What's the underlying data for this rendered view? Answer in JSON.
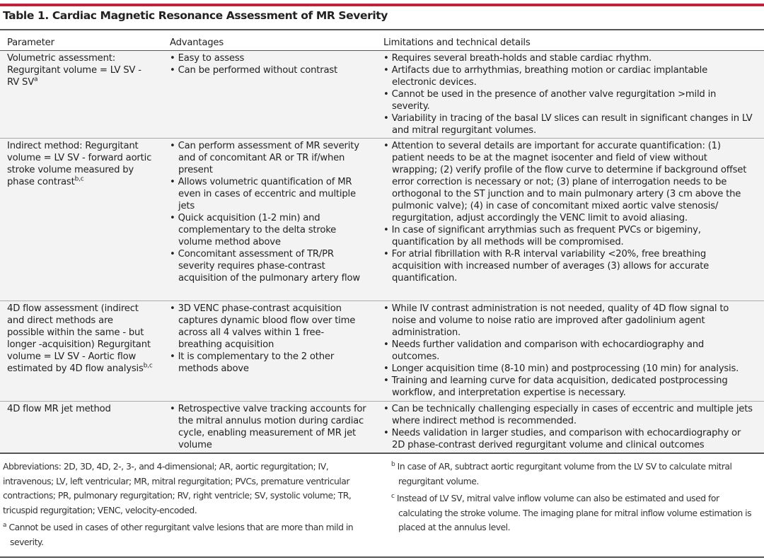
{
  "title": "Table 1. Cardiac Magnetic Resonance Assessment of MR Severity",
  "accent_color": "#b5263f",
  "headers": [
    "Parameter",
    "Advantages",
    "Limitations and technical details"
  ],
  "rows": [
    {
      "parameter": "Volumetric assessment: Regurgitant volume = LV SV - RV SV",
      "sup": "a",
      "advantages": [
        "Easy to assess",
        "Can be performed without contrast"
      ],
      "limitations": [
        "Requires several breath-holds and stable cardiac rhythm.",
        "Artifacts due to arrhythmias, breathing motion or cardiac implantable electronic devices.",
        "Cannot be used in the presence of another valve regurgitation >mild in severity.",
        "Variability in tracing of the basal LV slices can result in significant changes in LV and mitral regurgitant volumes."
      ]
    },
    {
      "parameter": "Indirect method: Regurgitant volume = LV SV - forward aortic stroke volume measured by phase contrast",
      "sup": "b,c",
      "advantages": [
        "Can perform assessment of MR severity and of concomitant AR or TR if/when present",
        "Allows volumetric quantification of MR even in cases of eccentric and multiple jets",
        "Quick acquisition (1-2 min) and complementary to the delta stroke volume method above",
        "Concomitant assessment of TR/PR severity requires phase-contrast acquisition of the pulmonary artery flow"
      ],
      "limitations": [
        "Attention to several details are important for accurate quantification: (1) patient needs to be at the magnet isocenter and field of view without wrapping; (2) verify profile of the flow curve to determine if background offset error correction is necessary or not; (3) plane of interrogation needs to be orthogonal to the ST junction and to main pulmonary artery (3 cm above the pulmonic valve); (4) in case of concomitant mixed aortic valve stenosis/ regurgitation, adjust accordingly the VENC limit to avoid aliasing.",
        "In case of significant arrythmias such as frequent PVCs or bigeminy, quantification by all methods will be compromised.",
        "For atrial fibrillation with R-R interval variability <20%, free breathing acquisition with increased number of averages (3) allows for accurate quantification."
      ]
    },
    {
      "parameter": "4D flow assessment (indirect and direct methods are possible within the same - but longer -acquisition) Regurgitant volume = LV SV - Aortic flow estimated by 4D flow analysis",
      "sup": "b,c",
      "advantages": [
        "3D VENC phase-contrast acquisition captures dynamic blood flow over time across all 4 valves within 1 free-breathing acquisition",
        "It is complementary to the 2 other methods above"
      ],
      "limitations": [
        "While IV contrast administration is not needed, quality of 4D flow signal to noise and volume to noise ratio are improved after gadolinium agent administration.",
        "Needs further validation and comparison with echocardiography and outcomes.",
        "Longer acquisition time (8-10 min) and postprocessing (10 min) for analysis.",
        "Training and learning curve for data acquisition, dedicated postprocessing workflow, and interpretation expertise is necessary."
      ]
    },
    {
      "parameter": "4D flow MR jet method",
      "sup": "",
      "advantages": [
        "Retrospective valve tracking accounts for the mitral annulus motion during cardiac cycle, enabling measurement of MR jet volume"
      ],
      "limitations": [
        "Can be technically challenging especially in cases of eccentric and multiple jets where indirect method is recommended.",
        "Needs validation in larger studies, and comparison with echocardiography or 2D phase-contrast derived regurgitant volume and clinical outcomes"
      ]
    }
  ],
  "footnotes": {
    "abbreviations": "Abbreviations: 2D, 3D, 4D, 2-, 3-, and 4-dimensional; AR, aortic regurgitation; IV, intravenous; LV, left ventricular; MR, mitral regurgitation; PVCs, premature ventricular contractions; PR, pulmonary regurgitation; RV, right ventricle; SV, systolic volume; TR, tricuspid regurgitation; VENC, velocity-encoded.",
    "a": {
      "mark": "a",
      "text": "Cannot be used in cases of other regurgitant valve lesions that are more than mild in severity."
    },
    "b": {
      "mark": "b",
      "text": "In case of AR, subtract aortic regurgitant volume from the LV SV to calculate mitral regurgitant volume."
    },
    "c": {
      "mark": "c",
      "text": "Instead of LV SV, mitral valve inflow volume can also be estimated and used for calculating the stroke volume. The imaging plane for mitral inflow volume estimation is placed at the annulus level."
    }
  }
}
